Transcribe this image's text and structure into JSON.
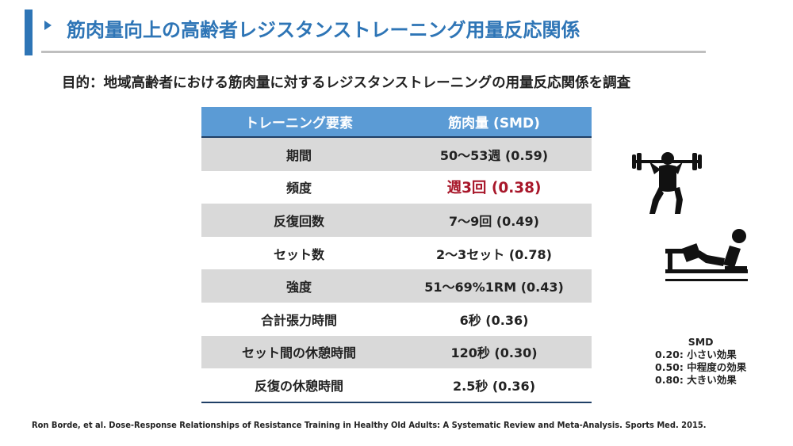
{
  "title": "筋肉量向上の高齢者レジスタンストレーニング用量反応関係",
  "purpose": "目的：地域高齢者における筋肉量に対するレジスタンストレーニングの用量反応関係を調査",
  "table": {
    "headers": [
      "トレーニング要素",
      "筋肉量 (SMD)"
    ],
    "rows": [
      {
        "element": "期間",
        "value": "50〜53週 (0.59)"
      },
      {
        "element": "頻度",
        "value": "週3回 (0.38)"
      },
      {
        "element": "反復回数",
        "value": "7〜9回 (0.49)"
      },
      {
        "element": "セット数",
        "value": "2〜3セット (0.78)"
      },
      {
        "element": "強度",
        "value": "51〜69%1RM (0.43)"
      },
      {
        "element": "合計張力時間",
        "value": "6秒 (0.36)"
      },
      {
        "element": "セット間の休憩時間",
        "value": "120秒 (0.30)"
      },
      {
        "element": "反復の休憩時間",
        "value": "2.5秒 (0.36)"
      }
    ]
  },
  "legend": {
    "title": "SMD",
    "items": [
      "0.20: 小さい効果",
      "0.50: 中程度の効果",
      "0.80: 大きい効果"
    ]
  },
  "citation": "Ron Borde, et al. Dose-Response Relationships of Resistance Training in Healthy Old Adults: A Systematic Review and Meta-Analysis. Sports Med. 2015.",
  "icons": {
    "figure1": "weightlifter-icon",
    "figure2": "leg-press-icon"
  },
  "colors": {
    "accent": "#2e75b6",
    "header_bg": "#5b9bd5",
    "highlight": "#a8172a",
    "stripe": "#d9d9d9"
  }
}
